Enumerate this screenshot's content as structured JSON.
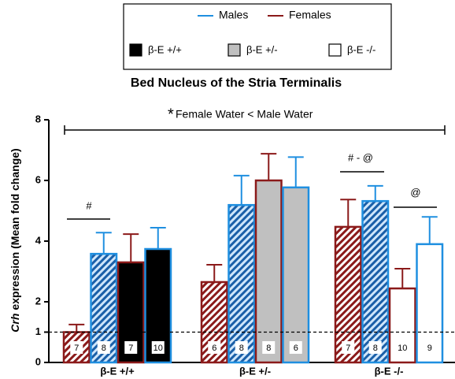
{
  "chart_data": {
    "type": "bar",
    "title": "Bed Nucleus of the Stria Terminalis",
    "ylabel_italic": "Crh",
    "ylabel": " expression (Mean fold change)",
    "categories": [
      "β-E +/+",
      "β-E +/-",
      "β-E -/-"
    ],
    "category_fills": [
      "#000000",
      "#c0c0c0",
      "#ffffff"
    ],
    "legend": [
      {
        "label": "Males",
        "color": "#1f8fe0"
      },
      {
        "label": "Females",
        "color": "#8b1a1a"
      }
    ],
    "series": [
      {
        "color": "#8b1a1a",
        "hatch": true,
        "values": [
          1.0,
          2.65,
          4.47
        ],
        "errors": [
          0.25,
          0.57,
          0.9
        ],
        "n": [
          7,
          6,
          7
        ]
      },
      {
        "color": "#1f8fe0",
        "hatch": true,
        "values": [
          3.58,
          5.19,
          5.32
        ],
        "errors": [
          0.7,
          0.97,
          0.5
        ],
        "n": [
          8,
          8,
          8
        ]
      },
      {
        "color": "#8b1a1a",
        "hatch": false,
        "values": [
          3.3,
          6.0,
          2.44
        ],
        "errors": [
          0.93,
          0.88,
          0.65
        ],
        "n": [
          7,
          8,
          10
        ]
      },
      {
        "color": "#1f8fe0",
        "hatch": false,
        "values": [
          3.74,
          5.77,
          3.9
        ],
        "errors": [
          0.7,
          1.0,
          0.9
        ],
        "n": [
          10,
          6,
          9
        ]
      }
    ],
    "ylim": [
      0,
      8
    ],
    "yticks": [
      0,
      1,
      2,
      4,
      6,
      8
    ],
    "reference_line": 1,
    "annotations": {
      "star": "*",
      "star_text": "Female Water < Male Water",
      "g1": "#",
      "g3a": "# - @",
      "g3b": "@"
    }
  }
}
